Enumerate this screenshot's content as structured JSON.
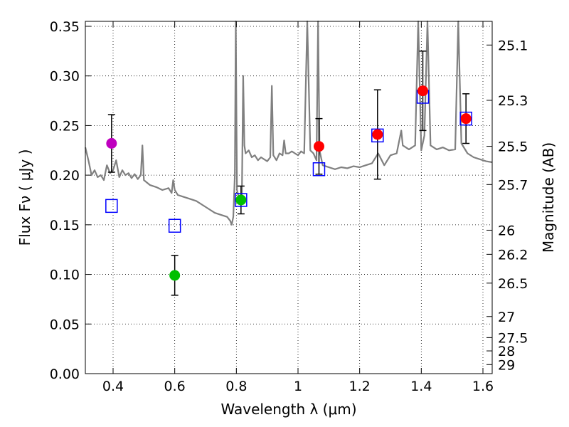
{
  "chart_data": {
    "type": "scatter",
    "xlabel": "Wavelength  λ (μm)",
    "ylabel": "Flux  Fν  ( μJy )",
    "y2label": "Magnitude (AB)",
    "xlim": [
      0.31,
      1.63
    ],
    "ylim": [
      0.0,
      0.355
    ],
    "grid": true,
    "x_ticks": [
      0.4,
      0.6,
      0.8,
      1.0,
      1.2,
      1.4,
      1.6
    ],
    "x_tick_labels": [
      "0.4",
      "0.6",
      "0.8",
      "1",
      "1.2",
      "1.4",
      "1.6"
    ],
    "y_ticks": [
      0.0,
      0.05,
      0.1,
      0.15,
      0.2,
      0.25,
      0.3,
      0.35
    ],
    "y_tick_labels": [
      "0.00",
      "0.05",
      "0.10",
      "0.15",
      "0.20",
      "0.25",
      "0.30",
      "0.35"
    ],
    "magnitude_ticks": [
      "25.1",
      "25.3",
      "25.5",
      "25.7",
      "26",
      "26.2",
      "26.5",
      "27",
      "27.5",
      "28",
      "29"
    ],
    "observed_photometry": [
      {
        "x": 0.395,
        "y": 0.232,
        "err": 0.029,
        "color": "#bf00bf"
      },
      {
        "x": 0.6,
        "y": 0.099,
        "err": 0.02,
        "color": "#00bf00"
      },
      {
        "x": 0.815,
        "y": 0.175,
        "err": 0.014,
        "color": "#00bf00"
      },
      {
        "x": 1.068,
        "y": 0.229,
        "err": 0.028,
        "color": "#ff0000"
      },
      {
        "x": 1.258,
        "y": 0.241,
        "err": 0.045,
        "color": "#ff0000"
      },
      {
        "x": 1.405,
        "y": 0.285,
        "err": 0.04,
        "color": "#ff0000"
      },
      {
        "x": 1.545,
        "y": 0.257,
        "err": 0.025,
        "color": "#ff0000"
      }
    ],
    "model_photometry": [
      {
        "x": 0.395,
        "y": 0.169
      },
      {
        "x": 0.6,
        "y": 0.149
      },
      {
        "x": 0.815,
        "y": 0.175
      },
      {
        "x": 1.068,
        "y": 0.206
      },
      {
        "x": 1.258,
        "y": 0.24
      },
      {
        "x": 1.405,
        "y": 0.279
      },
      {
        "x": 1.545,
        "y": 0.257
      }
    ],
    "model_spectrum": {
      "color": "#808080",
      "points": [
        [
          0.31,
          0.228
        ],
        [
          0.32,
          0.215
        ],
        [
          0.33,
          0.2
        ],
        [
          0.34,
          0.205
        ],
        [
          0.35,
          0.198
        ],
        [
          0.36,
          0.2
        ],
        [
          0.37,
          0.195
        ],
        [
          0.38,
          0.21
        ],
        [
          0.39,
          0.202
        ],
        [
          0.4,
          0.205
        ],
        [
          0.41,
          0.215
        ],
        [
          0.42,
          0.198
        ],
        [
          0.43,
          0.205
        ],
        [
          0.44,
          0.2
        ],
        [
          0.45,
          0.202
        ],
        [
          0.46,
          0.197
        ],
        [
          0.47,
          0.201
        ],
        [
          0.48,
          0.196
        ],
        [
          0.49,
          0.2
        ],
        [
          0.495,
          0.23
        ],
        [
          0.5,
          0.195
        ],
        [
          0.52,
          0.19
        ],
        [
          0.54,
          0.188
        ],
        [
          0.56,
          0.185
        ],
        [
          0.58,
          0.187
        ],
        [
          0.59,
          0.182
        ],
        [
          0.595,
          0.195
        ],
        [
          0.6,
          0.185
        ],
        [
          0.61,
          0.18
        ],
        [
          0.63,
          0.178
        ],
        [
          0.65,
          0.176
        ],
        [
          0.67,
          0.174
        ],
        [
          0.69,
          0.17
        ],
        [
          0.71,
          0.166
        ],
        [
          0.73,
          0.162
        ],
        [
          0.75,
          0.16
        ],
        [
          0.77,
          0.158
        ],
        [
          0.78,
          0.154
        ],
        [
          0.785,
          0.15
        ],
        [
          0.79,
          0.158
        ],
        [
          0.795,
          0.2
        ],
        [
          0.798,
          0.355
        ],
        [
          0.802,
          0.185
        ],
        [
          0.81,
          0.175
        ],
        [
          0.818,
          0.18
        ],
        [
          0.822,
          0.3
        ],
        [
          0.826,
          0.23
        ],
        [
          0.83,
          0.222
        ],
        [
          0.84,
          0.225
        ],
        [
          0.85,
          0.218
        ],
        [
          0.86,
          0.22
        ],
        [
          0.87,
          0.215
        ],
        [
          0.88,
          0.218
        ],
        [
          0.89,
          0.216
        ],
        [
          0.9,
          0.214
        ],
        [
          0.91,
          0.218
        ],
        [
          0.915,
          0.29
        ],
        [
          0.92,
          0.22
        ],
        [
          0.93,
          0.215
        ],
        [
          0.94,
          0.222
        ],
        [
          0.95,
          0.22
        ],
        [
          0.955,
          0.235
        ],
        [
          0.96,
          0.222
        ],
        [
          0.97,
          0.222
        ],
        [
          0.98,
          0.224
        ],
        [
          0.99,
          0.222
        ],
        [
          1.0,
          0.22
        ],
        [
          1.01,
          0.224
        ],
        [
          1.02,
          0.222
        ],
        [
          1.03,
          0.355
        ],
        [
          1.04,
          0.225
        ],
        [
          1.05,
          0.222
        ],
        [
          1.06,
          0.215
        ],
        [
          1.065,
          0.355
        ],
        [
          1.07,
          0.225
        ],
        [
          1.08,
          0.21
        ],
        [
          1.1,
          0.208
        ],
        [
          1.12,
          0.206
        ],
        [
          1.14,
          0.208
        ],
        [
          1.16,
          0.207
        ],
        [
          1.18,
          0.209
        ],
        [
          1.2,
          0.208
        ],
        [
          1.22,
          0.21
        ],
        [
          1.24,
          0.212
        ],
        [
          1.26,
          0.222
        ],
        [
          1.28,
          0.21
        ],
        [
          1.3,
          0.22
        ],
        [
          1.32,
          0.222
        ],
        [
          1.335,
          0.245
        ],
        [
          1.34,
          0.23
        ],
        [
          1.36,
          0.226
        ],
        [
          1.38,
          0.23
        ],
        [
          1.39,
          0.355
        ],
        [
          1.4,
          0.225
        ],
        [
          1.41,
          0.24
        ],
        [
          1.42,
          0.355
        ],
        [
          1.43,
          0.23
        ],
        [
          1.45,
          0.226
        ],
        [
          1.47,
          0.228
        ],
        [
          1.49,
          0.225
        ],
        [
          1.51,
          0.226
        ],
        [
          1.52,
          0.355
        ],
        [
          1.53,
          0.232
        ],
        [
          1.55,
          0.222
        ],
        [
          1.57,
          0.218
        ],
        [
          1.59,
          0.216
        ],
        [
          1.61,
          0.214
        ],
        [
          1.63,
          0.213
        ]
      ]
    }
  }
}
